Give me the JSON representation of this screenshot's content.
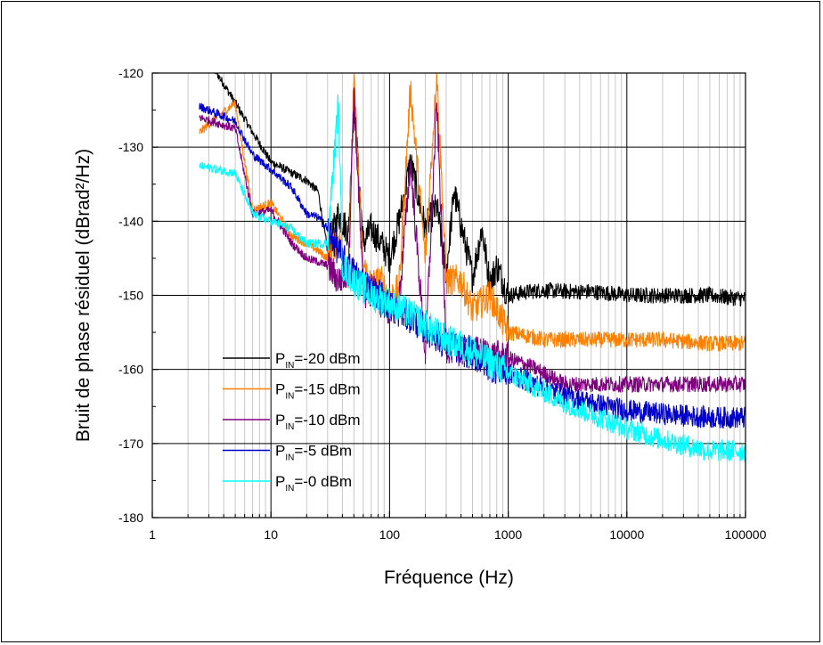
{
  "chart_data": {
    "type": "line",
    "xlabel": "Fréquence (Hz)",
    "ylabel": "Bruit de phase résiduel (dBrad²/Hz)",
    "x_scale": "log",
    "xlim": [
      1,
      100000
    ],
    "ylim": [
      -180,
      -120
    ],
    "x_ticks": [
      1,
      10,
      100,
      1000,
      10000,
      100000
    ],
    "x_tick_labels": [
      "1",
      "10",
      "100",
      "1000",
      "10000",
      "100000"
    ],
    "y_ticks": [
      -180,
      -170,
      -160,
      -150,
      -140,
      -130,
      -120
    ],
    "y_tick_labels": [
      "-180",
      "-170",
      "-160",
      "-150",
      "-140",
      "-130",
      "-120"
    ],
    "grid": true,
    "legend_position": "bottom-left",
    "series": [
      {
        "name_main": "P",
        "name_sub": "IN",
        "name_rest": "=-20 dBm",
        "color": "#000000",
        "x": [
          2.5,
          3.5,
          5,
          7,
          10,
          15,
          20,
          25,
          30,
          37,
          45,
          50,
          60,
          70,
          85,
          100,
          120,
          150,
          200,
          250,
          300,
          350,
          400,
          500,
          600,
          700,
          800,
          1000,
          1500,
          2000,
          3000,
          5000,
          7000,
          10000,
          20000,
          50000,
          100000
        ],
        "y": [
          -118,
          -120,
          -124,
          -128,
          -132,
          -133.5,
          -134.5,
          -136,
          -144,
          -139,
          -141.5,
          -124,
          -143,
          -141,
          -143,
          -145,
          -140,
          -132,
          -141,
          -138,
          -147,
          -136,
          -140.5,
          -147.5,
          -141,
          -148.5,
          -146,
          -150,
          -149.5,
          -149.3,
          -149.5,
          -149.5,
          -149.7,
          -150,
          -150,
          -150,
          -150.5
        ]
      },
      {
        "name_main": "P",
        "name_sub": "IN",
        "name_rest": "=-15 dBm",
        "color": "#FF8000",
        "x": [
          2.5,
          3.5,
          5,
          7,
          10,
          15,
          20,
          25,
          30,
          37,
          45,
          50,
          60,
          70,
          85,
          100,
          120,
          150,
          200,
          250,
          300,
          400,
          500,
          700,
          1000,
          1500,
          2000,
          3000,
          5000,
          10000,
          20000,
          50000,
          100000
        ],
        "y": [
          -128,
          -126,
          -124,
          -138.5,
          -137.5,
          -142,
          -143,
          -144,
          -145,
          -142,
          -147,
          -121,
          -146,
          -148.5,
          -148,
          -150.5,
          -149,
          -122,
          -145,
          -120,
          -148,
          -148,
          -152,
          -150,
          -155,
          -155.5,
          -156,
          -156,
          -156,
          -156,
          -156,
          -156.5,
          -156.5
        ]
      },
      {
        "name_main": "P",
        "name_sub": "IN",
        "name_rest": "=-10 dBm",
        "color": "#800080",
        "x": [
          2.5,
          5,
          7,
          10,
          15,
          20,
          25,
          30,
          37,
          45,
          50,
          60,
          70,
          85,
          100,
          120,
          150,
          200,
          250,
          300,
          400,
          500,
          700,
          1000,
          1500,
          2000,
          3000,
          5000,
          10000,
          20000,
          50000,
          100000
        ],
        "y": [
          -126,
          -127.5,
          -139,
          -138.5,
          -143,
          -145,
          -145.5,
          -146,
          -148,
          -147,
          -122,
          -150,
          -149,
          -151,
          -152,
          -151,
          -132,
          -158,
          -124,
          -157,
          -157.5,
          -157.5,
          -158,
          -158.5,
          -159.5,
          -160.5,
          -162,
          -162,
          -162,
          -162,
          -162,
          -162
        ]
      },
      {
        "name_main": "P",
        "name_sub": "IN",
        "name_rest": "=-5 dBm",
        "color": "#0000CC",
        "x": [
          2.5,
          5,
          7,
          10,
          15,
          20,
          25,
          30,
          40,
          50,
          60,
          70,
          85,
          100,
          150,
          200,
          300,
          500,
          700,
          1000,
          2000,
          3000,
          5000,
          10000,
          20000,
          50000,
          100000
        ],
        "y": [
          -124.5,
          -126.5,
          -131,
          -133,
          -135.5,
          -139,
          -139.5,
          -141,
          -145,
          -147,
          -148,
          -149.5,
          -150,
          -151.5,
          -153,
          -154.5,
          -156.5,
          -158,
          -159.5,
          -160.5,
          -162.5,
          -163.5,
          -164.5,
          -165.5,
          -166,
          -166.5,
          -166.5
        ]
      },
      {
        "name_main": "P",
        "name_sub": "IN",
        "name_rest": "=-0 dBm",
        "color": "#00FFFF",
        "x": [
          2.5,
          5,
          7,
          10,
          15,
          20,
          25,
          30,
          37,
          40,
          50,
          60,
          70,
          100,
          150,
          200,
          300,
          500,
          700,
          1000,
          2000,
          3000,
          5000,
          10000,
          20000,
          50000,
          100000
        ],
        "y": [
          -132.5,
          -133.5,
          -139,
          -140,
          -141,
          -143,
          -143,
          -143,
          -124,
          -146,
          -148,
          -149,
          -150,
          -151,
          -152.5,
          -154,
          -156,
          -157.5,
          -159,
          -160.5,
          -163,
          -164.5,
          -166,
          -168,
          -169.5,
          -171,
          -171
        ]
      }
    ]
  }
}
